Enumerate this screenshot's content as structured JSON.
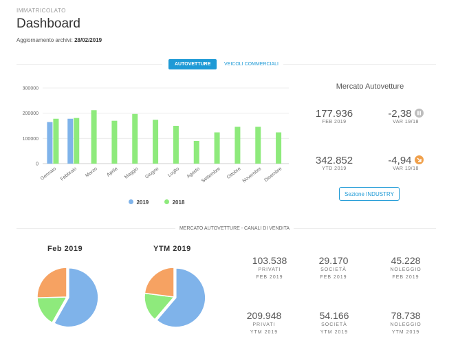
{
  "header": {
    "overline": "IMMATRICOLATO",
    "title": "Dashboard",
    "update_label": "Aggiornamento archivi:",
    "update_date": "28/02/2019"
  },
  "tabs": [
    {
      "label": "AUTOVETTURE",
      "active": true
    },
    {
      "label": "VEICOLI COMMERCIALI",
      "active": false
    }
  ],
  "colors": {
    "series2019": "#7fb3ea",
    "series2018": "#8eea7c",
    "accent": "#1e9ad6",
    "down_orange": "#f0a04b",
    "neutral_grey": "#bdbdbd"
  },
  "chart_data": {
    "type": "bar",
    "categories": [
      "Gennaio",
      "Febbraio",
      "Marzo",
      "Aprile",
      "Maggio",
      "Giugno",
      "Luglio",
      "Agosto",
      "Settembre",
      "Ottobre",
      "Novembre",
      "Dicembre"
    ],
    "series": [
      {
        "name": "2019",
        "values": [
          165000,
          178000,
          null,
          null,
          null,
          null,
          null,
          null,
          null,
          null,
          null,
          null
        ]
      },
      {
        "name": "2018",
        "values": [
          178000,
          181000,
          212000,
          170000,
          197000,
          174000,
          150000,
          90000,
          124000,
          146000,
          146000,
          124000
        ]
      }
    ],
    "yticks": [
      "300000",
      "200000",
      "100000",
      "0"
    ],
    "ylim": [
      0,
      300000
    ],
    "grid": true,
    "legend": "bottom"
  },
  "mercato": {
    "title": "Mercato Autovetture",
    "kpis": [
      {
        "value": "177.936",
        "label": "FEB 2019"
      },
      {
        "value": "-2,38",
        "label": "VAR 19/18",
        "icon": "pause-icon"
      },
      {
        "value": "342.852",
        "label": "YTD 2019"
      },
      {
        "value": "-4,94",
        "label": "VAR 19/18",
        "icon": "arrow-down-right-icon"
      }
    ],
    "button_label": "Sezione INDUSTRY"
  },
  "channels": {
    "section_title": "MERCATO AUTOVETTURE - CANALI DI VENDITA",
    "pies": [
      {
        "title": "Feb 2019",
        "slices": [
          103538,
          29170,
          45228
        ]
      },
      {
        "title": "YTM 2019",
        "slices": [
          209948,
          54166,
          78738
        ]
      }
    ],
    "pie_colors": [
      "#7fb3ea",
      "#8eea7c",
      "#f6a262"
    ],
    "stats_row1": [
      {
        "value": "103.538",
        "label": "PRIVATI",
        "period": "FEB 2019"
      },
      {
        "value": "29.170",
        "label": "SOCIETÀ",
        "period": "FEB 2019"
      },
      {
        "value": "45.228",
        "label": "NOLEGGIO",
        "period": "FEB 2019"
      }
    ],
    "stats_row2": [
      {
        "value": "209.948",
        "label": "PRIVATI",
        "period": "YTM 2019"
      },
      {
        "value": "54.166",
        "label": "SOCIETÀ",
        "period": "YTM 2019"
      },
      {
        "value": "78.738",
        "label": "NOLEGGIO",
        "period": "YTM 2019"
      }
    ]
  }
}
